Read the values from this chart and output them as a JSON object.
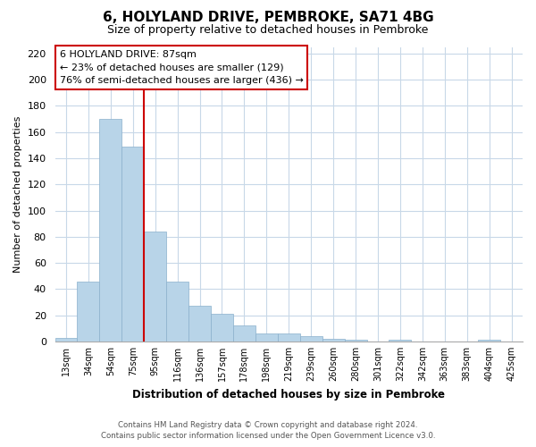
{
  "title": "6, HOLYLAND DRIVE, PEMBROKE, SA71 4BG",
  "subtitle": "Size of property relative to detached houses in Pembroke",
  "xlabel": "Distribution of detached houses by size in Pembroke",
  "ylabel": "Number of detached properties",
  "categories": [
    "13sqm",
    "34sqm",
    "54sqm",
    "75sqm",
    "95sqm",
    "116sqm",
    "136sqm",
    "157sqm",
    "178sqm",
    "198sqm",
    "219sqm",
    "239sqm",
    "260sqm",
    "280sqm",
    "301sqm",
    "322sqm",
    "342sqm",
    "363sqm",
    "383sqm",
    "404sqm",
    "425sqm"
  ],
  "values": [
    3,
    46,
    170,
    149,
    84,
    46,
    27,
    21,
    12,
    6,
    6,
    4,
    2,
    1,
    0,
    1,
    0,
    0,
    0,
    1,
    0
  ],
  "bar_color": "#b8d4e8",
  "bar_edge_color": "#8ab0cc",
  "vline_color": "#cc0000",
  "vline_x": 3.5,
  "ylim": [
    0,
    225
  ],
  "yticks": [
    0,
    20,
    40,
    60,
    80,
    100,
    120,
    140,
    160,
    180,
    200,
    220
  ],
  "annotation_title": "6 HOLYLAND DRIVE: 87sqm",
  "annotation_line1": "← 23% of detached houses are smaller (129)",
  "annotation_line2": "76% of semi-detached houses are larger (436) →",
  "footer_line1": "Contains HM Land Registry data © Crown copyright and database right 2024.",
  "footer_line2": "Contains public sector information licensed under the Open Government Licence v3.0.",
  "background_color": "#ffffff",
  "grid_color": "#c8d8e8",
  "title_fontsize": 11,
  "subtitle_fontsize": 9
}
